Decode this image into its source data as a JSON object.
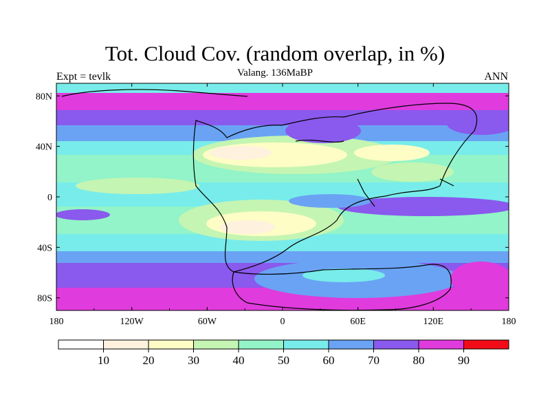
{
  "title": "Tot. Cloud Cov. (random overlap, in %)",
  "subtitle": "Valang. 136MaBP",
  "left_label": "Expt = tevlk",
  "right_label": "ANN",
  "map": {
    "projection": "cylindrical equidistant",
    "lon_ticks": [
      "180",
      "120W",
      "60W",
      "0",
      "60E",
      "120E",
      "180"
    ],
    "lat_ticks": [
      "80N",
      "40N",
      "0",
      "40S",
      "80S"
    ]
  },
  "colorbar": {
    "labels": [
      "10",
      "20",
      "30",
      "40",
      "50",
      "60",
      "70",
      "80",
      "90"
    ],
    "colors": [
      "#ffffff",
      "#fef1de",
      "#fdfdc5",
      "#c5f5b2",
      "#92f4c8",
      "#78ecea",
      "#6aa3f4",
      "#8a59ed",
      "#e03bdd",
      "#f20c17"
    ]
  }
}
